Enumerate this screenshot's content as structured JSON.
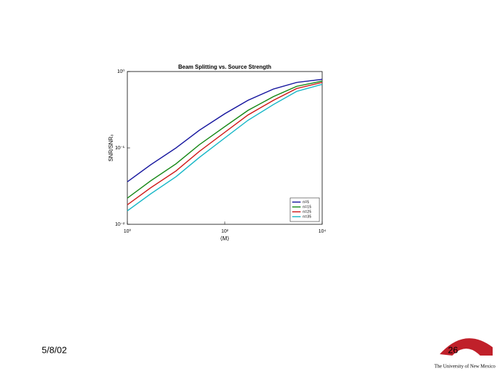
{
  "chart_data": {
    "type": "line",
    "title": "Beam Splitting vs. Source Strength",
    "xlabel": "⟨M⟩",
    "ylabel": "SNR/SNR₀",
    "x": [
      1,
      3,
      10,
      30,
      100,
      300,
      1000,
      3000,
      10000
    ],
    "series": [
      {
        "name": "n=5",
        "color": "#1a1aa0",
        "values": [
          0.036,
          0.06,
          0.1,
          0.17,
          0.28,
          0.42,
          0.59,
          0.72,
          0.79
        ]
      },
      {
        "name": "n=15",
        "color": "#1a8a1a",
        "values": [
          0.022,
          0.037,
          0.062,
          0.11,
          0.19,
          0.31,
          0.47,
          0.64,
          0.75
        ]
      },
      {
        "name": "n=25",
        "color": "#d01c1c",
        "values": [
          0.018,
          0.03,
          0.05,
          0.09,
          0.16,
          0.27,
          0.42,
          0.6,
          0.72
        ]
      },
      {
        "name": "n=35",
        "color": "#1ab8c8",
        "values": [
          0.015,
          0.025,
          0.042,
          0.075,
          0.135,
          0.23,
          0.37,
          0.55,
          0.68
        ]
      }
    ],
    "xscale": "log",
    "yscale": "log",
    "xlim": [
      1,
      10000
    ],
    "ylim": [
      0.01,
      1
    ],
    "xticks": [
      {
        "value": 1,
        "label": "10⁰"
      },
      {
        "value": 100,
        "label": "10²"
      },
      {
        "value": 10000,
        "label": "10⁴"
      }
    ],
    "yticks": [
      {
        "value": 0.01,
        "label": "10⁻²"
      },
      {
        "value": 0.1,
        "label": "10⁻¹"
      },
      {
        "value": 1,
        "label": "10⁰"
      }
    ],
    "grid": false,
    "legend": "lower right"
  },
  "footer": {
    "date": "5/8/02",
    "page": "26",
    "logo_text": "The University of New Mexico"
  }
}
